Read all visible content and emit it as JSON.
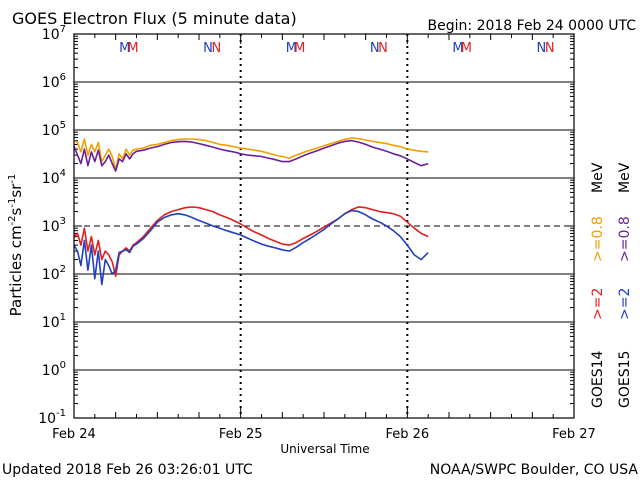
{
  "header": {
    "title": "GOES Electron Flux (5 minute data)",
    "begin": "Begin: 2018 Feb 24 0000 UTC"
  },
  "footer": {
    "updated": "Updated 2018 Feb 26 03:26:01 UTC",
    "credit": "NOAA/SWPC Boulder, CO USA"
  },
  "colors": {
    "goes14_0_8": "#f0a000",
    "goes15_0_8": "#6a1f9a",
    "goes14_2": "#e02020",
    "goes15_2": "#2040c0",
    "marker_m": "#2040c0",
    "marker_m2": "#e02020",
    "marker_n": "#2040c0",
    "marker_n2": "#e02020"
  },
  "chart_data": {
    "type": "line",
    "title": "GOES Electron Flux (5 minute data)",
    "xlabel": "Universal Time",
    "ylabel": "Particles cm-2s-1sr-1",
    "ylabel_parts": {
      "base": "Particles cm",
      "e1": "-2",
      "mid1": "s",
      "e2": "-1",
      "mid2": "sr",
      "e3": "-1"
    },
    "yscale": "log",
    "ylim": [
      0.1,
      10000000
    ],
    "xlim": [
      0,
      72
    ],
    "x_unit": "hours since 2018 Feb 24 0000 UTC",
    "x_ticks": [
      {
        "x": 0,
        "label": "Feb 24"
      },
      {
        "x": 24,
        "label": "Feb 25"
      },
      {
        "x": 48,
        "label": "Feb 26"
      },
      {
        "x": 72,
        "label": "Feb 27"
      }
    ],
    "y_ticks": [
      {
        "value": 0.1,
        "base": "10",
        "exp": "-1"
      },
      {
        "value": 1,
        "base": "10",
        "exp": "0"
      },
      {
        "value": 10,
        "base": "10",
        "exp": "1"
      },
      {
        "value": 100,
        "base": "10",
        "exp": "2"
      },
      {
        "value": 1000,
        "base": "10",
        "exp": "3"
      },
      {
        "value": 10000,
        "base": "10",
        "exp": "4"
      },
      {
        "value": 100000,
        "base": "10",
        "exp": "5"
      },
      {
        "value": 1000000,
        "base": "10",
        "exp": "6"
      },
      {
        "value": 10000000,
        "base": "10",
        "exp": "7"
      }
    ],
    "threshold": {
      "value": 1000,
      "style": "dashed"
    },
    "markers": [
      {
        "x": 7.3,
        "label": "M",
        "series": "goes15"
      },
      {
        "x": 8.5,
        "label": "M",
        "series": "goes14"
      },
      {
        "x": 19.3,
        "label": "N",
        "series": "goes15"
      },
      {
        "x": 20.5,
        "label": "N",
        "series": "goes14"
      },
      {
        "x": 31.3,
        "label": "M",
        "series": "goes15"
      },
      {
        "x": 32.5,
        "label": "M",
        "series": "goes14"
      },
      {
        "x": 43.3,
        "label": "N",
        "series": "goes15"
      },
      {
        "x": 44.5,
        "label": "N",
        "series": "goes14"
      },
      {
        "x": 55.3,
        "label": "M",
        "series": "goes15"
      },
      {
        "x": 56.5,
        "label": "M",
        "series": "goes14"
      },
      {
        "x": 67.3,
        "label": "N",
        "series": "goes15"
      },
      {
        "x": 68.5,
        "label": "N",
        "series": "goes14"
      }
    ],
    "legend": [
      {
        "label": "GOES14",
        "color_key": "none"
      },
      {
        "label": "GOES15",
        "color_key": "none"
      },
      {
        "label": ">=2",
        "color_key": "goes14_2"
      },
      {
        "label": ">=2",
        "color_key": "goes15_2"
      },
      {
        "label": ">=0.8",
        "color_key": "goes14_0_8"
      },
      {
        "label": ">=0.8",
        "color_key": "goes15_0_8"
      },
      {
        "label": "MeV",
        "color_key": "none"
      },
      {
        "label": "MeV",
        "color_key": "none"
      }
    ],
    "series": [
      {
        "name": "GOES14 >=0.8 MeV",
        "color_key": "goes14_0_8",
        "x": [
          0,
          0.5,
          1,
          1.5,
          2,
          2.5,
          3,
          3.5,
          4,
          4.5,
          5,
          5.5,
          6,
          6.5,
          7,
          7.5,
          8,
          8.5,
          9,
          10,
          11,
          12,
          13,
          14,
          15,
          16,
          17,
          18,
          19,
          20,
          21,
          22,
          23,
          24,
          25,
          26,
          27,
          28,
          29,
          30,
          31,
          32,
          33,
          34,
          35,
          36,
          37,
          38,
          39,
          40,
          41,
          42,
          43,
          44,
          45,
          46,
          47,
          48,
          49,
          50,
          51
        ],
        "values": [
          60000,
          55000,
          35000,
          65000,
          30000,
          50000,
          35000,
          55000,
          22000,
          30000,
          40000,
          28000,
          15000,
          32000,
          25000,
          40000,
          30000,
          38000,
          40000,
          42000,
          48000,
          50000,
          55000,
          60000,
          63000,
          65000,
          65000,
          63000,
          60000,
          55000,
          50000,
          48000,
          45000,
          42000,
          40000,
          38000,
          36000,
          33000,
          30000,
          28000,
          26000,
          30000,
          34000,
          38000,
          42000,
          47000,
          52000,
          58000,
          64000,
          68000,
          66000,
          62000,
          58000,
          55000,
          52000,
          48000,
          45000,
          40000,
          38000,
          36000,
          35000
        ]
      },
      {
        "name": "GOES15 >=0.8 MeV",
        "color_key": "goes15_0_8",
        "x": [
          0,
          0.5,
          1,
          1.5,
          2,
          2.5,
          3,
          3.5,
          4,
          4.5,
          5,
          5.5,
          6,
          6.5,
          7,
          7.5,
          8,
          8.5,
          9,
          10,
          11,
          12,
          13,
          14,
          15,
          16,
          17,
          18,
          19,
          20,
          21,
          22,
          23,
          24,
          25,
          26,
          27,
          28,
          29,
          30,
          31,
          32,
          33,
          34,
          35,
          36,
          37,
          38,
          39,
          40,
          41,
          42,
          43,
          44,
          45,
          46,
          47,
          48,
          49,
          50,
          51
        ],
        "values": [
          45000,
          30000,
          20000,
          40000,
          18000,
          35000,
          22000,
          38000,
          18000,
          22000,
          30000,
          20000,
          14000,
          25000,
          22000,
          32000,
          25000,
          32000,
          36000,
          38000,
          42000,
          45000,
          50000,
          55000,
          57000,
          58000,
          56000,
          52000,
          48000,
          44000,
          40000,
          37000,
          35000,
          32000,
          30000,
          29000,
          28000,
          26000,
          24000,
          22000,
          22000,
          25000,
          29000,
          33000,
          37000,
          42000,
          47000,
          53000,
          58000,
          60000,
          56000,
          50000,
          44000,
          40000,
          36000,
          32000,
          29000,
          25000,
          21000,
          18000,
          20000
        ]
      },
      {
        "name": "GOES14 >=2 MeV",
        "color_key": "goes14_2",
        "x": [
          0,
          0.5,
          1,
          1.5,
          2,
          2.5,
          3,
          3.5,
          4,
          4.5,
          5,
          5.5,
          6,
          6.5,
          7,
          7.5,
          8,
          8.5,
          9,
          10,
          11,
          12,
          13,
          14,
          15,
          16,
          17,
          18,
          19,
          20,
          21,
          22,
          23,
          24,
          25,
          26,
          27,
          28,
          29,
          30,
          31,
          32,
          33,
          34,
          35,
          36,
          37,
          38,
          39,
          40,
          41,
          42,
          43,
          44,
          45,
          46,
          47,
          48,
          49,
          50,
          51
        ],
        "values": [
          600,
          700,
          400,
          900,
          300,
          600,
          250,
          500,
          200,
          300,
          250,
          180,
          90,
          250,
          300,
          350,
          300,
          400,
          450,
          600,
          900,
          1300,
          1700,
          2000,
          2200,
          2400,
          2500,
          2400,
          2200,
          2000,
          1700,
          1500,
          1300,
          1100,
          900,
          750,
          650,
          550,
          480,
          420,
          400,
          450,
          550,
          650,
          780,
          950,
          1150,
          1400,
          1800,
          2200,
          2500,
          2400,
          2200,
          2000,
          1900,
          1800,
          1600,
          1200,
          900,
          700,
          600
        ]
      },
      {
        "name": "GOES15 >=2 MeV",
        "color_key": "goes15_2",
        "x": [
          0,
          0.5,
          1,
          1.5,
          2,
          2.5,
          3,
          3.5,
          4,
          4.5,
          5,
          5.5,
          6,
          6.5,
          7,
          7.5,
          8,
          8.5,
          9,
          10,
          11,
          12,
          13,
          14,
          15,
          16,
          17,
          18,
          19,
          20,
          21,
          22,
          23,
          24,
          25,
          26,
          27,
          28,
          29,
          30,
          31,
          32,
          33,
          34,
          35,
          36,
          37,
          38,
          39,
          40,
          41,
          42,
          43,
          44,
          45,
          46,
          47,
          48,
          49,
          50,
          51
        ],
        "values": [
          400,
          300,
          150,
          500,
          120,
          400,
          80,
          300,
          60,
          200,
          150,
          100,
          120,
          280,
          300,
          320,
          280,
          380,
          420,
          550,
          800,
          1200,
          1500,
          1700,
          1800,
          1700,
          1500,
          1300,
          1150,
          1000,
          900,
          800,
          720,
          650,
          560,
          480,
          420,
          380,
          350,
          320,
          300,
          360,
          450,
          550,
          680,
          850,
          1100,
          1400,
          1800,
          2100,
          2000,
          1700,
          1400,
          1200,
          1000,
          800,
          600,
          400,
          250,
          200,
          280
        ]
      }
    ]
  }
}
